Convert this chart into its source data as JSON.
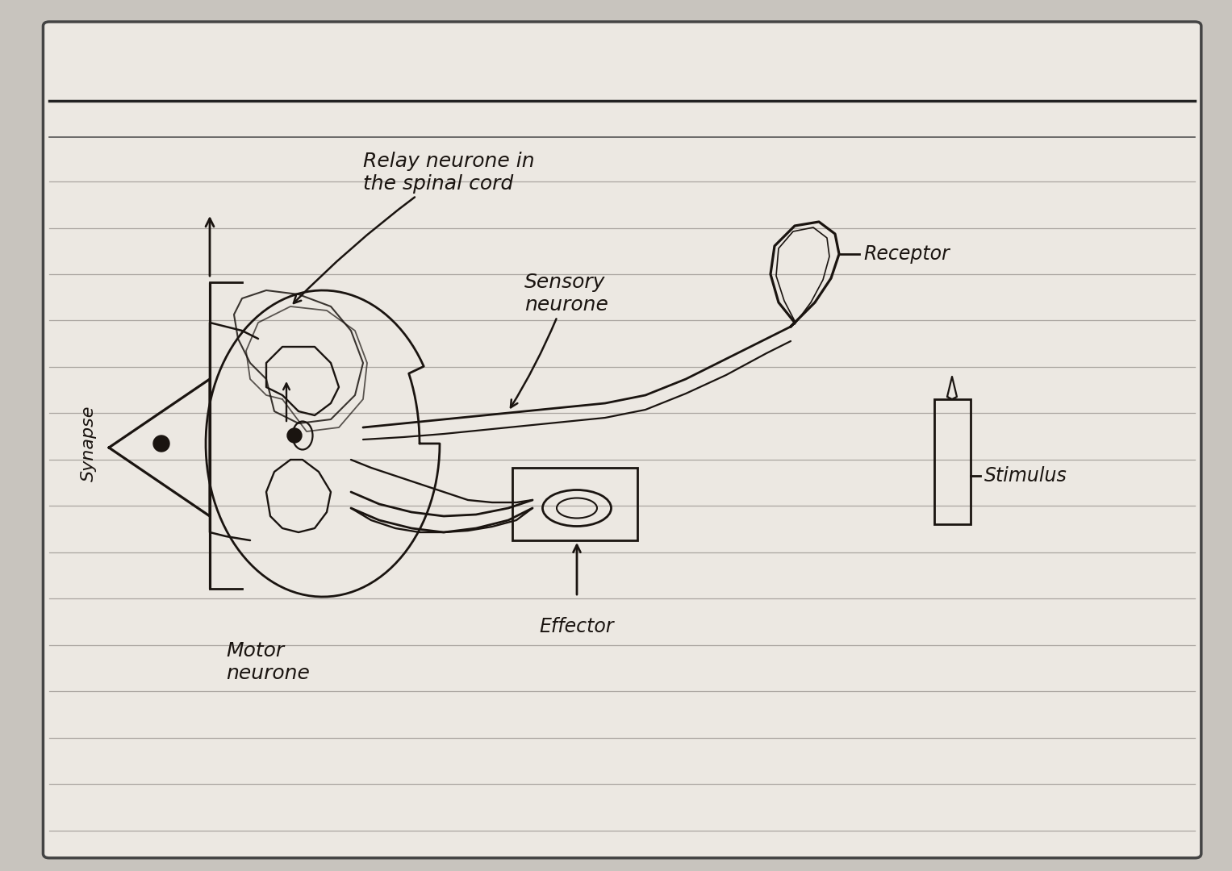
{
  "bg_color": "#c8c4be",
  "paper_color": "#ece8e2",
  "paper_color2": "#ddd8d2",
  "ruled_color": "#9a9490",
  "ink": "#1a1410",
  "lw": 2.0,
  "labels": {
    "relay_neurone": "Relay neurone in\nthe spinal cord",
    "sensory_neurone": "Sensory\nneurone",
    "receptor": "Receptor",
    "stimulus": "Stimulus",
    "motor_neurone": "Motor\nneurone",
    "effector": "Effector",
    "synapse": "Synapse"
  },
  "label_fontsize": 17,
  "synapse_fontsize": 16
}
